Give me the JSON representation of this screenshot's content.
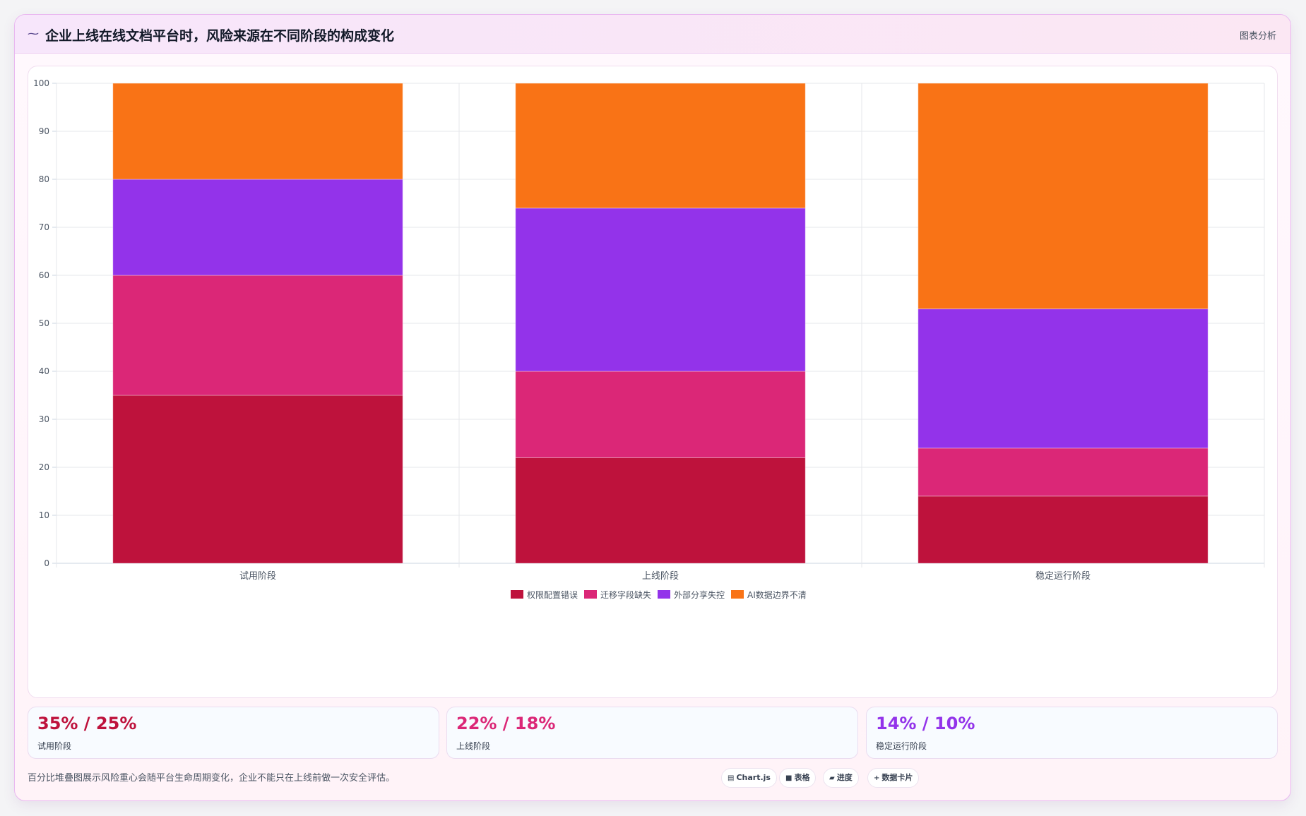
{
  "header": {
    "title": "企业上线在线文档平台时，风险来源在不同阶段的构成变化",
    "tag": "图表分析",
    "icon": "sparkle-icon"
  },
  "colors": {
    "permission": "#be123c",
    "migration": "#db2777",
    "sharing": "#9333ea",
    "ai": "#f97316"
  },
  "chart_data": {
    "type": "bar",
    "stacked": true,
    "categories": [
      "试用阶段",
      "上线阶段",
      "稳定运行阶段"
    ],
    "series": [
      {
        "name": "权限配置错误",
        "values": [
          35,
          22,
          14
        ],
        "color": "#be123c"
      },
      {
        "name": "迁移字段缺失",
        "values": [
          25,
          18,
          10
        ],
        "color": "#db2777"
      },
      {
        "name": "外部分享失控",
        "values": [
          20,
          34,
          29
        ],
        "color": "#9333ea"
      },
      {
        "name": "AI数据边界不清",
        "values": [
          20,
          26,
          47
        ],
        "color": "#f97316"
      }
    ],
    "ylim": [
      0,
      100
    ],
    "yticks": [
      0,
      10,
      20,
      30,
      40,
      50,
      60,
      70,
      80,
      90,
      100
    ],
    "grid": true,
    "legend": "bottom"
  },
  "stats": [
    {
      "value": "35% / 25%",
      "label": "试用阶段",
      "color": "#be123c"
    },
    {
      "value": "22% / 18%",
      "label": "上线阶段",
      "color": "#db2777"
    },
    {
      "value": "14% / 10%",
      "label": "稳定运行阶段",
      "color": "#9333ea"
    }
  ],
  "footnote": "百分比堆叠图展示风险重心会随平台生命周期变化，企业不能只在上线前做一次安全评估。",
  "chips": [
    {
      "icon": "chart-icon",
      "glyph": "▤",
      "label": "Chart.js"
    },
    {
      "icon": "table-icon",
      "glyph": "■",
      "label": "表格"
    },
    {
      "icon": "progress-icon",
      "glyph": "▰",
      "label": "进度"
    },
    {
      "icon": "card-icon",
      "glyph": "+",
      "label": "数据卡片"
    }
  ]
}
